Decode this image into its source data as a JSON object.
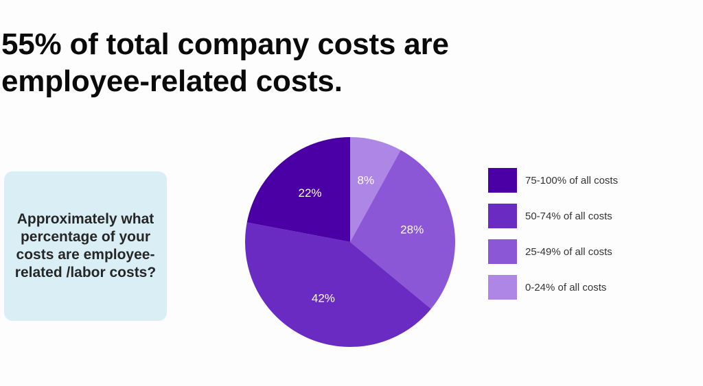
{
  "chart_data": {
    "type": "pie",
    "title": "55% of total company costs are employee-related costs.",
    "subtitle": "Approximately what percentage of your costs are employee-related /labor costs?",
    "slices": [
      {
        "name": "75-100% of all costs",
        "value": 22,
        "label": "22%",
        "color": "#4a00a5"
      },
      {
        "name": "50-74% of all costs",
        "value": 42,
        "label": "42%",
        "color": "#6a2bc2"
      },
      {
        "name": "25-49% of all costs",
        "value": 28,
        "label": "28%",
        "color": "#8b57d6"
      },
      {
        "name": "0-24% of all costs",
        "value": 8,
        "label": "8%",
        "color": "#ae87e6"
      }
    ],
    "legend_position": "right"
  },
  "colors": {
    "card_background": "#daeef5",
    "page_background": "#fdfdfd"
  }
}
